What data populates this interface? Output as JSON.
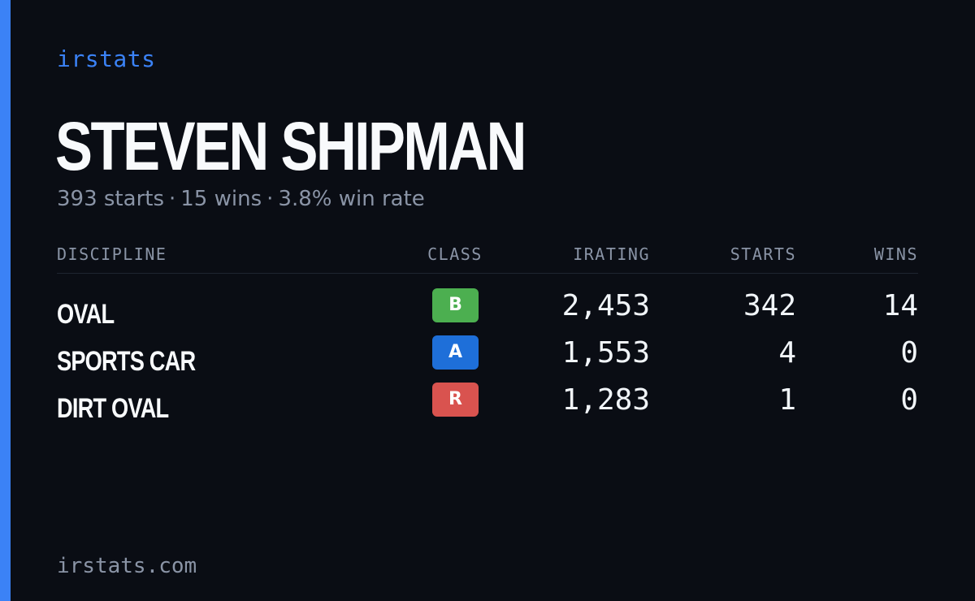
{
  "brand": {
    "name": "irstats",
    "url": "irstats.com",
    "accent_color": "#3b82f6"
  },
  "player": {
    "name": "STEVEN SHIPMAN",
    "summary": {
      "starts": "393 starts",
      "wins": "15 wins",
      "win_rate": "3.8% win rate",
      "separator": "·"
    }
  },
  "table": {
    "headers": {
      "discipline": "DISCIPLINE",
      "class": "CLASS",
      "irating": "IRATING",
      "starts": "STARTS",
      "wins": "WINS"
    },
    "rows": [
      {
        "discipline": "OVAL",
        "class": "B",
        "class_color": "#4caf50",
        "irating": "2,453",
        "starts": "342",
        "wins": "14"
      },
      {
        "discipline": "SPORTS CAR",
        "class": "A",
        "class_color": "#1e6fd9",
        "irating": "1,553",
        "starts": "4",
        "wins": "0"
      },
      {
        "discipline": "DIRT OVAL",
        "class": "R",
        "class_color": "#d9534f",
        "irating": "1,283",
        "starts": "1",
        "wins": "0"
      }
    ]
  }
}
